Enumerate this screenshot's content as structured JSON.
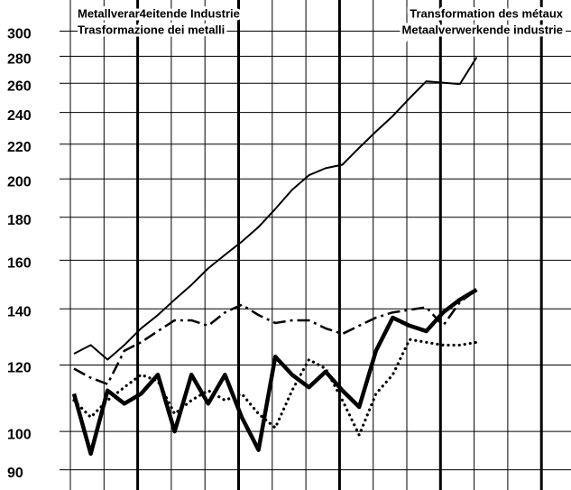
{
  "chart_data": {
    "type": "line",
    "title_left": [
      "Metallverar4eitende Industrie",
      "Trasformazione dei metalli"
    ],
    "title_right": [
      "Transformation des métaux",
      "Metaalverwerkende industrie"
    ],
    "categories": [
      null,
      null,
      null,
      null,
      null,
      null,
      null,
      null,
      null,
      null,
      null,
      null,
      null,
      null,
      null,
      null,
      null,
      null,
      null,
      null,
      null,
      null,
      null,
      null,
      null
    ],
    "series": [
      {
        "color": "#000",
        "style": "solid",
        "values": [
          125,
          128,
          123,
          128,
          134,
          139,
          145,
          151,
          158,
          164,
          170,
          177,
          186,
          196,
          204,
          208,
          210,
          220,
          230,
          240,
          252,
          264,
          263,
          262,
          282
        ]
      },
      {
        "color": "#000",
        "style": "dashdot",
        "values": [
          120,
          117,
          115,
          126,
          129,
          133,
          137,
          137,
          135,
          140,
          143,
          139,
          136,
          137,
          137,
          134,
          132,
          135,
          138,
          140,
          141,
          142,
          135,
          144,
          149
        ]
      },
      {
        "color": "#000",
        "style": "dotted",
        "values": [
          110,
          105,
          110,
          114,
          118,
          116,
          106,
          110,
          113,
          110,
          112,
          106,
          102,
          113,
          123,
          120,
          110,
          100,
          112,
          118,
          130,
          129,
          128,
          128,
          129
        ]
      },
      {
        "color": "#000",
        "style": "thick",
        "values": [
          112,
          95,
          113,
          109,
          112,
          118,
          101,
          118,
          109,
          118,
          105,
          96,
          124,
          118,
          114,
          119,
          113,
          108,
          126,
          138,
          135,
          133,
          140,
          145,
          149
        ]
      }
    ],
    "log_scale": true,
    "grid": true,
    "ylim": [
      86,
      330
    ],
    "yticks": [
      90,
      100,
      120,
      140,
      160,
      180,
      200,
      220,
      240,
      260,
      280,
      300
    ]
  }
}
